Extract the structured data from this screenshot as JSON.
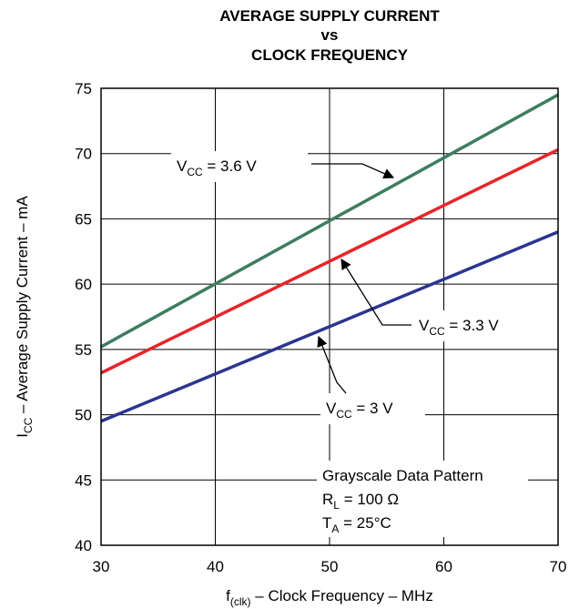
{
  "chart_data": {
    "type": "line",
    "title": [
      "AVERAGE SUPPLY CURRENT",
      "vs",
      "CLOCK FREQUENCY"
    ],
    "xlabel": {
      "main": "f",
      "sub": "(clk)",
      "rest": " – Clock Frequency – MHz"
    },
    "ylabel": {
      "main": "I",
      "sub": "CC",
      "rest": " – Average Supply Current – mA"
    },
    "xlim": [
      30,
      70
    ],
    "ylim": [
      40,
      75
    ],
    "xticks": [
      30,
      40,
      50,
      60,
      70
    ],
    "yticks": [
      40,
      45,
      50,
      55,
      60,
      65,
      70,
      75
    ],
    "grid": true,
    "series": [
      {
        "name": "VCC = 3.6 V",
        "color": "#3e7d5e",
        "x": [
          30,
          70
        ],
        "y": [
          55.2,
          74.5
        ]
      },
      {
        "name": "VCC = 3.3 V",
        "color": "#e8242a",
        "x": [
          30,
          70
        ],
        "y": [
          53.2,
          70.3
        ]
      },
      {
        "name": "VCC = 3 V",
        "color": "#2b3590",
        "x": [
          30,
          70
        ],
        "y": [
          49.5,
          64.0
        ]
      }
    ],
    "series_labels": [
      {
        "main": "V",
        "sub": "CC",
        "rest": " = 3.6 V"
      },
      {
        "main": "V",
        "sub": "CC",
        "rest": " = 3.3 V"
      },
      {
        "main": "V",
        "sub": "CC",
        "rest": " = 3 V"
      }
    ],
    "conditions": [
      {
        "main": "Grayscale Data Pattern",
        "sub": "",
        "rest": ""
      },
      {
        "main": "R",
        "sub": "L",
        "rest": " = 100 Ω"
      },
      {
        "main": "T",
        "sub": "A",
        "rest": " = 25°C"
      }
    ]
  }
}
